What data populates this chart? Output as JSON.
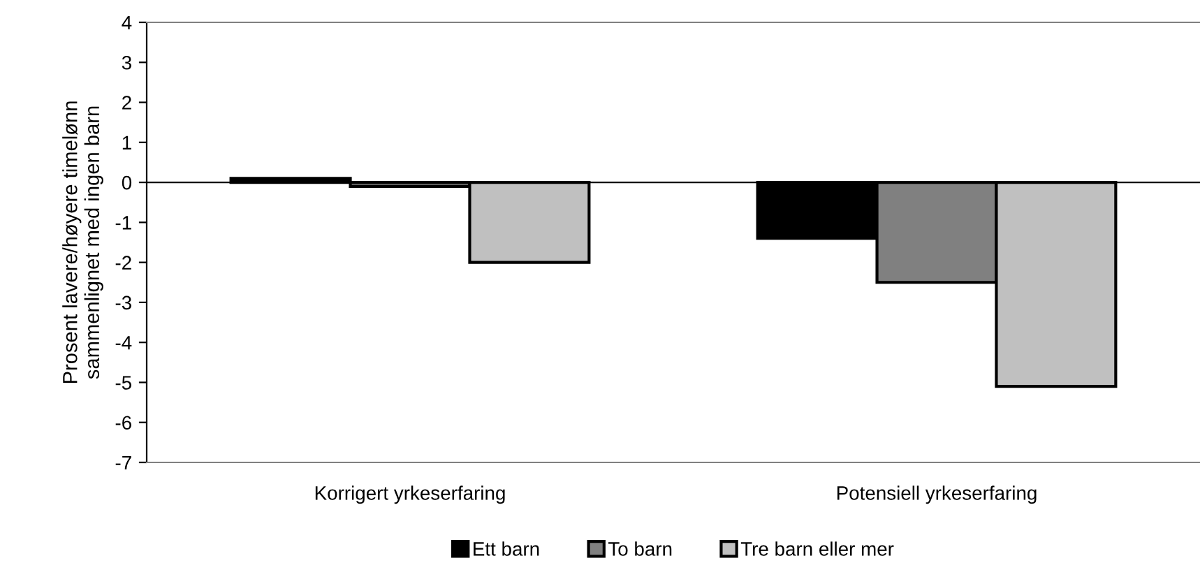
{
  "chart_data": {
    "type": "bar",
    "ylabel": "Prosent lavere/høyere timelønn\nsammenlignet med ingen barn",
    "categories": [
      "Korrigert yrkeserfaring",
      "Potensiell yrkeserfaring"
    ],
    "series": [
      {
        "name": "Ett barn",
        "color": "#000000",
        "values": [
          0.1,
          -1.4
        ]
      },
      {
        "name": "To barn",
        "color": "#808080",
        "values": [
          -0.1,
          -2.5
        ]
      },
      {
        "name": "Tre barn eller mer",
        "color": "#c0c0c0",
        "values": [
          -2.0,
          -5.1
        ]
      }
    ],
    "ylim": [
      -7,
      4
    ],
    "yticks": [
      -7,
      -6,
      -5,
      -4,
      -3,
      -2,
      -1,
      0,
      1,
      2,
      3,
      4
    ],
    "ref_lines": [
      {
        "axis": "y",
        "value": 0,
        "color": "#000000"
      }
    ],
    "grid": false,
    "legend": "bottom"
  }
}
